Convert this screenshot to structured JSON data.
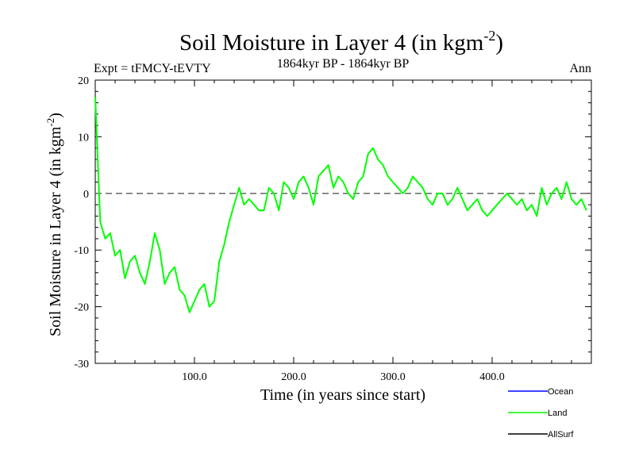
{
  "chart_data": {
    "type": "line",
    "title": "Soil Moisture in Layer 4 (in kgm",
    "title_superscript": "-2",
    "title_close": ")",
    "experiment": "Expt = tFMCY-tEVTY",
    "period": "1864kyr BP - 1864kyr BP",
    "season": "Ann",
    "xlabel": "Time (in years since start)",
    "ylabel": "Soil Moisture in Layer 4 (in kgm",
    "ylabel_superscript": "-2",
    "ylabel_close": ")",
    "xlim": [
      0,
      500
    ],
    "ylim": [
      -30,
      20
    ],
    "x_ticks": [
      100,
      200,
      300,
      400
    ],
    "x_tick_labels": [
      "100.0",
      "200.0",
      "300.0",
      "400.0"
    ],
    "y_ticks": [
      -30,
      -20,
      -10,
      0,
      10,
      20
    ],
    "y_tick_labels": [
      "-30",
      "-20",
      "-10",
      "0",
      "10",
      "20"
    ],
    "zero_line": 0,
    "legend": [
      {
        "name": "Ocean",
        "color": "#0000ff"
      },
      {
        "name": "Land",
        "color": "#00ff00"
      },
      {
        "name": "AllSurf",
        "color": "#000000"
      }
    ],
    "series": [
      {
        "name": "Land",
        "color": "#00ff00",
        "x_start": 0,
        "x_step": 5,
        "values": [
          17,
          -5,
          -8,
          -7,
          -11,
          -10,
          -15,
          -12,
          -11,
          -14,
          -16,
          -12,
          -7,
          -10,
          -16,
          -14,
          -13,
          -17,
          -18,
          -21,
          -19,
          -17,
          -16,
          -20,
          -19,
          -12,
          -9,
          -5,
          -2,
          1,
          -2,
          -1,
          -2,
          -3,
          -3,
          1,
          0,
          -3,
          2,
          1,
          -1,
          2,
          3,
          1,
          -2,
          3,
          4,
          5,
          1,
          3,
          2,
          0,
          -1,
          2,
          3,
          7,
          8,
          6,
          5,
          3,
          2,
          1,
          0,
          1,
          3,
          2,
          1,
          -1,
          -2,
          0,
          0,
          -2,
          -1,
          1,
          -1,
          -3,
          -2,
          -1,
          -3,
          -4,
          -3,
          -2,
          -1,
          0,
          -1,
          -2,
          -1,
          -3,
          -2,
          -4,
          1,
          -2,
          0,
          1,
          -1,
          2,
          -1,
          -2,
          -1,
          -3
        ]
      }
    ]
  }
}
